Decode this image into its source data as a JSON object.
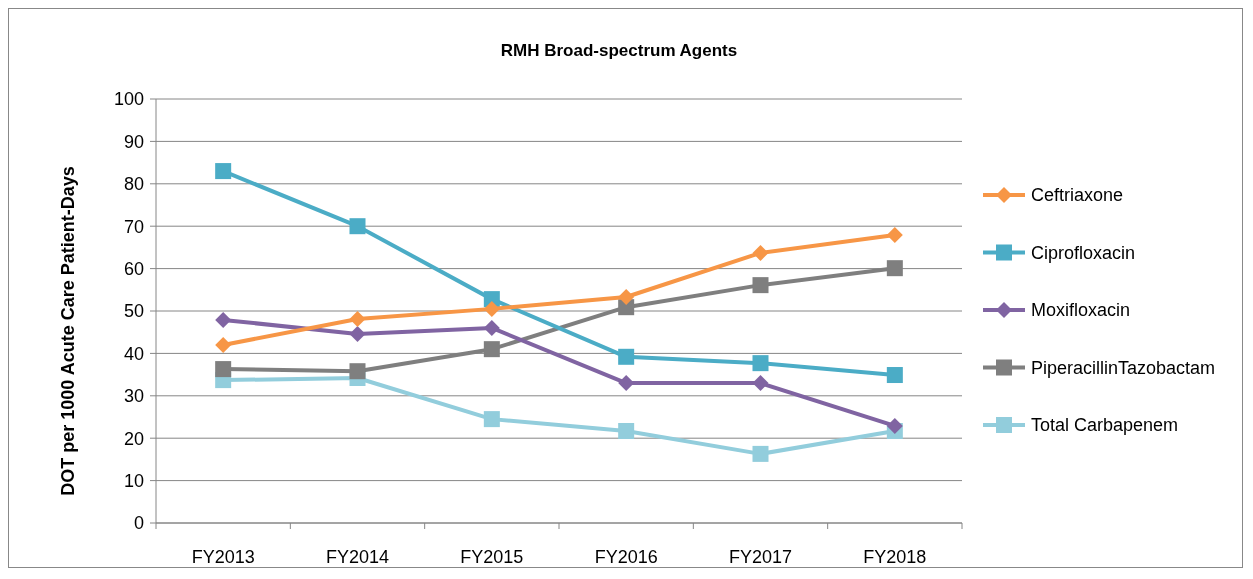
{
  "chart_data": {
    "type": "line",
    "title": "RMH Broad-spectrum Agents",
    "ylabel": "DOT per 1000 Acute Care Patient-Days",
    "categories": [
      "FY2013",
      "FY2014",
      "FY2015",
      "FY2016",
      "FY2017",
      "FY2018"
    ],
    "series": [
      {
        "name": "Ceftriaxone",
        "color": "#f79646",
        "marker": "diamond",
        "values": [
          42.0,
          48.1,
          50.5,
          53.3,
          63.7,
          67.9
        ]
      },
      {
        "name": "Ciprofloxacin",
        "color": "#4bacc6",
        "marker": "square",
        "values": [
          83.0,
          70.0,
          52.8,
          39.2,
          37.7,
          34.9
        ]
      },
      {
        "name": "Moxifloxacin",
        "color": "#8064a2",
        "marker": "diamond",
        "values": [
          47.9,
          44.6,
          46.0,
          33.0,
          33.0,
          22.9
        ]
      },
      {
        "name": "PiperacillinTazobactam",
        "color": "#7f7f7f",
        "marker": "square",
        "values": [
          36.3,
          35.8,
          41.0,
          50.9,
          56.1,
          60.1
        ]
      },
      {
        "name": "Total Carbapenem",
        "color": "#92cddc",
        "marker": "square",
        "values": [
          33.7,
          34.2,
          24.5,
          21.7,
          16.3,
          21.7
        ]
      }
    ],
    "ylim": [
      0,
      100
    ],
    "yticks": [
      0,
      10,
      20,
      30,
      40,
      50,
      60,
      70,
      80,
      90,
      100
    ],
    "grid": "y",
    "legend": "right",
    "line_style": "solid"
  }
}
